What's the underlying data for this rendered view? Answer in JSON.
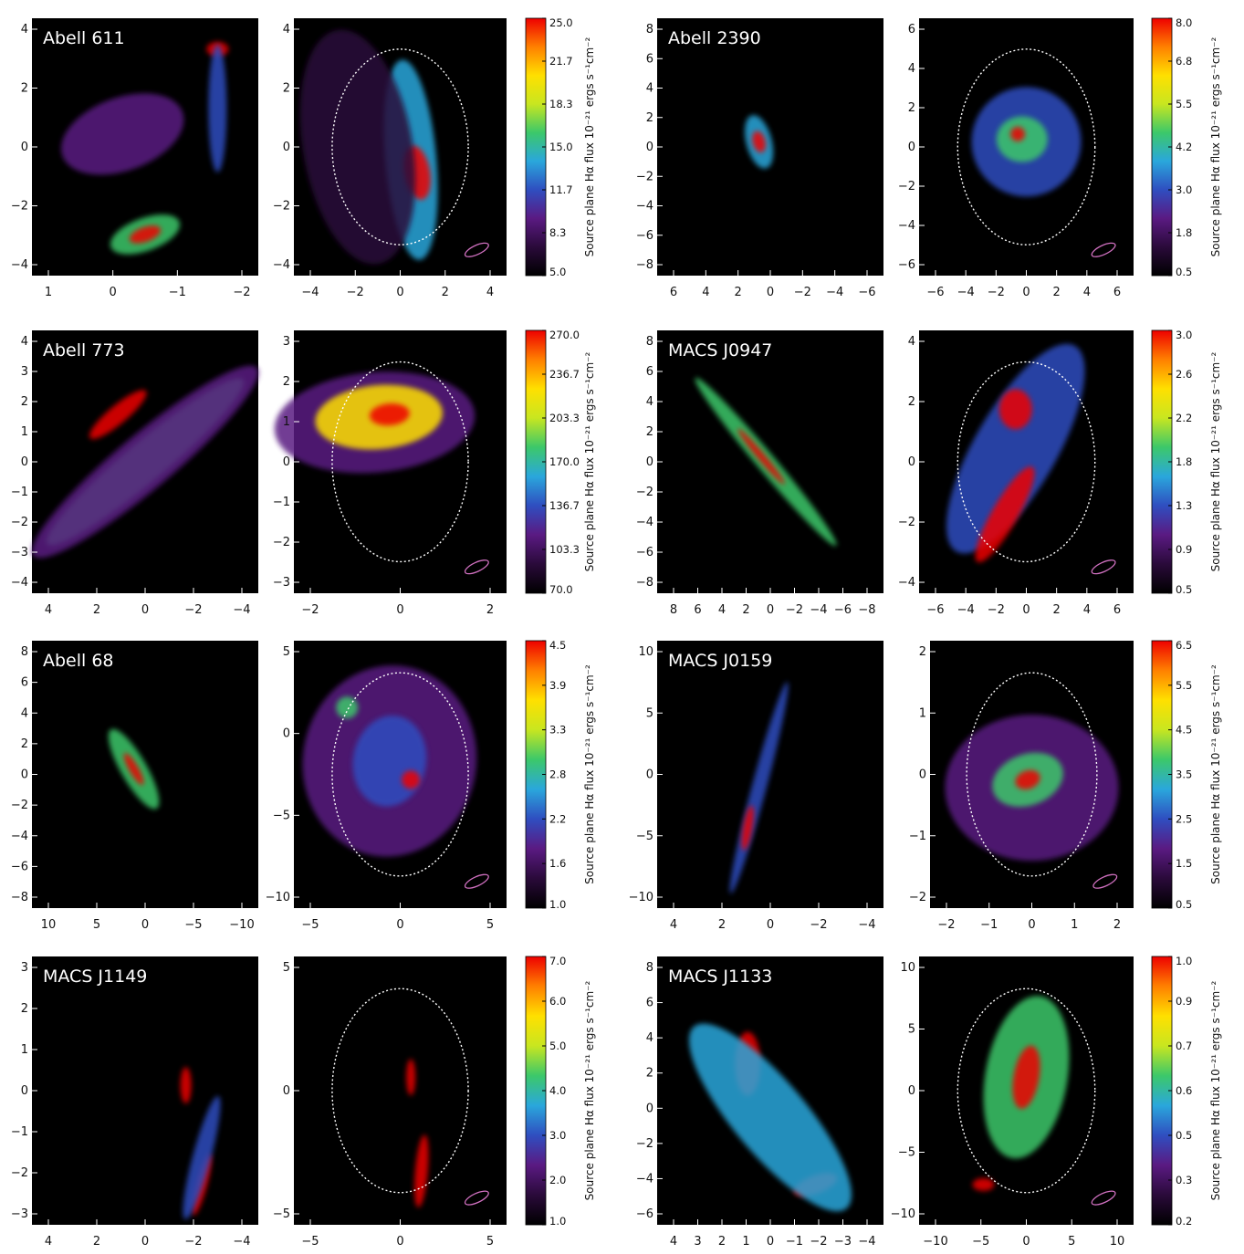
{
  "figure": {
    "colorbar_title": "Source plane Hα flux 10⁻²¹ ergs s⁻¹cm⁻²",
    "colormap": [
      "#000000",
      "#2a0a3a",
      "#5a1a82",
      "#2f4ec0",
      "#2aa7dc",
      "#3cc86a",
      "#c8e620",
      "#ffe000",
      "#ff8000",
      "#ee0000"
    ],
    "rows": [
      {
        "image": {
          "name": "Abell 611",
          "xticks": [
            "1",
            "0",
            "−1",
            "−2"
          ],
          "yticks": [
            "4",
            "2",
            "0",
            "−2",
            "−4"
          ]
        },
        "source": {
          "xticks": [
            "−4",
            "−2",
            "0",
            "2",
            "4"
          ],
          "yticks": [
            "4",
            "2",
            "0",
            "−2",
            "−4"
          ],
          "colorbar": [
            "25.0",
            "21.7",
            "18.3",
            "15.0",
            "11.7",
            "8.3",
            "5.0"
          ]
        }
      },
      {
        "image": {
          "name": "Abell 2390",
          "xticks": [
            "6",
            "4",
            "2",
            "0",
            "−2",
            "−4",
            "−6"
          ],
          "yticks": [
            "8",
            "6",
            "4",
            "2",
            "0",
            "−2",
            "−4",
            "−6",
            "−8"
          ]
        },
        "source": {
          "xticks": [
            "−6",
            "−4",
            "−2",
            "0",
            "2",
            "4",
            "6"
          ],
          "yticks": [
            "6",
            "4",
            "2",
            "0",
            "−2",
            "−4",
            "−6"
          ],
          "colorbar": [
            "8.0",
            "6.8",
            "5.5",
            "4.2",
            "3.0",
            "1.8",
            "0.5"
          ]
        }
      },
      {
        "image": {
          "name": "Abell 773",
          "xticks": [
            "4",
            "2",
            "0",
            "−2",
            "−4"
          ],
          "yticks": [
            "4",
            "3",
            "2",
            "1",
            "0",
            "−1",
            "−2",
            "−3",
            "−4"
          ]
        },
        "source": {
          "xticks": [
            "−2",
            "0",
            "2"
          ],
          "yticks": [
            "3",
            "2",
            "1",
            "0",
            "−1",
            "−2",
            "−3"
          ],
          "colorbar": [
            "270.0",
            "236.7",
            "203.3",
            "170.0",
            "136.7",
            "103.3",
            "70.0"
          ]
        }
      },
      {
        "image": {
          "name": "MACS J0947",
          "xticks": [
            "8",
            "6",
            "4",
            "2",
            "0",
            "−2",
            "−4",
            "−6",
            "−8"
          ],
          "yticks": [
            "8",
            "6",
            "4",
            "2",
            "0",
            "−2",
            "−4",
            "−6",
            "−8"
          ]
        },
        "source": {
          "xticks": [
            "−6",
            "−4",
            "−2",
            "0",
            "2",
            "4",
            "6"
          ],
          "yticks": [
            "4",
            "2",
            "0",
            "−2",
            "−4"
          ],
          "colorbar": [
            "3.0",
            "2.6",
            "2.2",
            "1.8",
            "1.3",
            "0.9",
            "0.5"
          ]
        }
      },
      {
        "image": {
          "name": "Abell 68",
          "xticks": [
            "10",
            "5",
            "0",
            "−5",
            "−10"
          ],
          "yticks": [
            "8",
            "6",
            "4",
            "2",
            "0",
            "−2",
            "−4",
            "−6",
            "−8"
          ]
        },
        "source": {
          "xticks": [
            "−5",
            "0",
            "5"
          ],
          "yticks": [
            "5",
            "0",
            "−5",
            "−10"
          ],
          "colorbar": [
            "4.5",
            "3.9",
            "3.3",
            "2.8",
            "2.2",
            "1.6",
            "1.0"
          ]
        }
      },
      {
        "image": {
          "name": "MACS J0159",
          "xticks": [
            "4",
            "2",
            "0",
            "−2",
            "−4"
          ],
          "yticks": [
            "10",
            "5",
            "0",
            "−5",
            "−10"
          ]
        },
        "source": {
          "xticks": [
            "−2",
            "−1",
            "0",
            "1",
            "2"
          ],
          "yticks": [
            "2",
            "1",
            "0",
            "−1",
            "−2"
          ],
          "colorbar": [
            "6.5",
            "5.5",
            "4.5",
            "3.5",
            "2.5",
            "1.5",
            "0.5"
          ]
        }
      },
      {
        "image": {
          "name": "MACS J1149",
          "xticks": [
            "4",
            "2",
            "0",
            "−2",
            "−4"
          ],
          "yticks": [
            "3",
            "2",
            "1",
            "0",
            "−1",
            "−2",
            "−3"
          ]
        },
        "source": {
          "xticks": [
            "−5",
            "0",
            "5"
          ],
          "yticks": [
            "5",
            "0",
            "−5"
          ],
          "colorbar": [
            "7.0",
            "6.0",
            "5.0",
            "4.0",
            "3.0",
            "2.0",
            "1.0"
          ]
        }
      },
      {
        "image": {
          "name": "MACS J1133",
          "xticks": [
            "4",
            "3",
            "2",
            "1",
            "0",
            "−1",
            "−2",
            "−3",
            "−4"
          ],
          "yticks": [
            "8",
            "6",
            "4",
            "2",
            "0",
            "−2",
            "−4",
            "−6"
          ]
        },
        "source": {
          "xticks": [
            "−10",
            "−5",
            "0",
            "5",
            "10"
          ],
          "yticks": [
            "10",
            "5",
            "0",
            "−5",
            "−10"
          ],
          "colorbar": [
            "1.0",
            "0.9",
            "0.7",
            "0.6",
            "0.5",
            "0.3",
            "0.2"
          ]
        }
      }
    ]
  }
}
